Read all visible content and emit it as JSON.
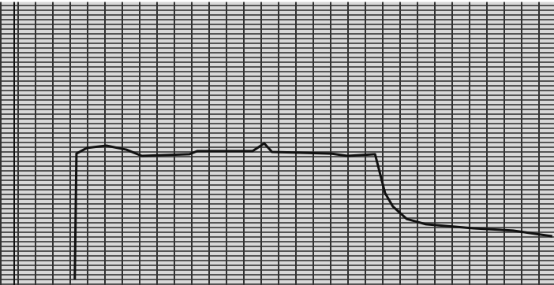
{
  "chart_data": {
    "type": "line",
    "x": [
      13.5,
      13.8,
      15.7,
      19.2,
      22.8,
      25.6,
      34.2,
      35.6,
      45.6,
      47.7,
      49.1,
      59.8,
      62.7,
      67.7,
      68.4,
      69.5,
      70.9,
      73.4,
      76.9,
      85.5,
      92.6,
      99.7
    ],
    "series": [
      {
        "color": "#111111",
        "values": [
          1.9,
          46.1,
          48.1,
          48.9,
          47.5,
          45.3,
          45.9,
          47.0,
          47.0,
          49.7,
          46.7,
          46.1,
          45.3,
          45.9,
          40.6,
          32.3,
          27.6,
          23.2,
          21.3,
          19.9,
          19.1,
          17.1
        ]
      }
    ],
    "xlim": [
      0,
      100
    ],
    "ylim": [
      0,
      100
    ]
  }
}
